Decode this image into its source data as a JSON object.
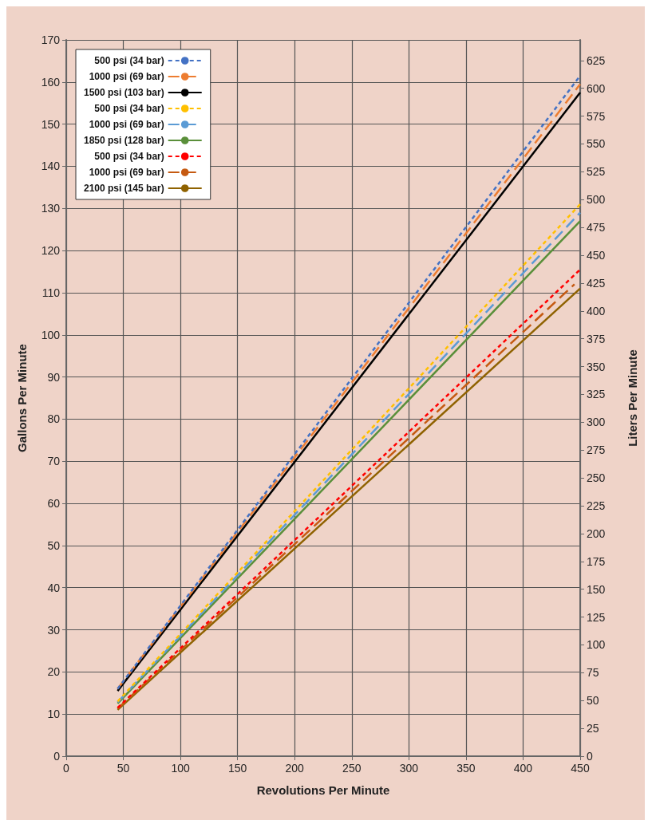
{
  "chart_data": {
    "type": "line",
    "xlabel": "Revolutions Per Minute",
    "ylabel": "Gallons Per Minute",
    "y2label": "Liters Per Minute",
    "xlim": [
      0,
      450
    ],
    "xticks": [
      0,
      50,
      100,
      150,
      200,
      250,
      300,
      350,
      400,
      450
    ],
    "ylim": [
      0,
      170
    ],
    "yticks": [
      0,
      10,
      20,
      30,
      40,
      50,
      60,
      70,
      80,
      90,
      100,
      110,
      120,
      130,
      140,
      150,
      160,
      170
    ],
    "y2lim": [
      0,
      643.5
    ],
    "y2ticks": [
      0,
      25,
      50,
      75,
      100,
      125,
      150,
      175,
      200,
      225,
      250,
      275,
      300,
      325,
      350,
      375,
      400,
      425,
      450,
      475,
      500,
      525,
      550,
      575,
      600,
      625
    ],
    "grid": true,
    "legend": "top left",
    "marker": "none",
    "series": [
      {
        "name": "500 psi (34 bar)",
        "color": "#4472c4",
        "line_style": "dotted",
        "x": [
          45,
          450
        ],
        "values": [
          16,
          161.5
        ]
      },
      {
        "name": "1000 psi (69 bar)",
        "color": "#ed7d31",
        "line_style": "dashed",
        "x": [
          45,
          450
        ],
        "values": [
          16,
          159.5
        ]
      },
      {
        "name": "1500 psi (103 bar)",
        "color": "#000000",
        "line_style": "solid",
        "x": [
          45,
          450
        ],
        "values": [
          15.5,
          157.5
        ]
      },
      {
        "name": "500 psi (34 bar)",
        "color": "#ffc000",
        "line_style": "dotted",
        "x": [
          45,
          450
        ],
        "values": [
          13,
          131
        ]
      },
      {
        "name": "1000 psi (69 bar)",
        "color": "#5b9bd5",
        "line_style": "dashed",
        "x": [
          45,
          450
        ],
        "values": [
          12.8,
          129
        ]
      },
      {
        "name": "1850 psi (128 bar)",
        "color": "#5a8f3a",
        "line_style": "solid",
        "x": [
          45,
          450
        ],
        "values": [
          12.5,
          127
        ]
      },
      {
        "name": "500 psi (34 bar)",
        "color": "#ff0000",
        "line_style": "dotted",
        "x": [
          45,
          450
        ],
        "values": [
          11.5,
          115.5
        ]
      },
      {
        "name": "1000 psi (69 bar)",
        "color": "#c55a11",
        "line_style": "dashed",
        "x": [
          45,
          445
        ],
        "values": [
          11.3,
          112
        ]
      },
      {
        "name": "2100 psi (145 bar)",
        "color": "#8f6200",
        "line_style": "solid",
        "x": [
          45,
          450
        ],
        "values": [
          11,
          111
        ]
      }
    ]
  }
}
